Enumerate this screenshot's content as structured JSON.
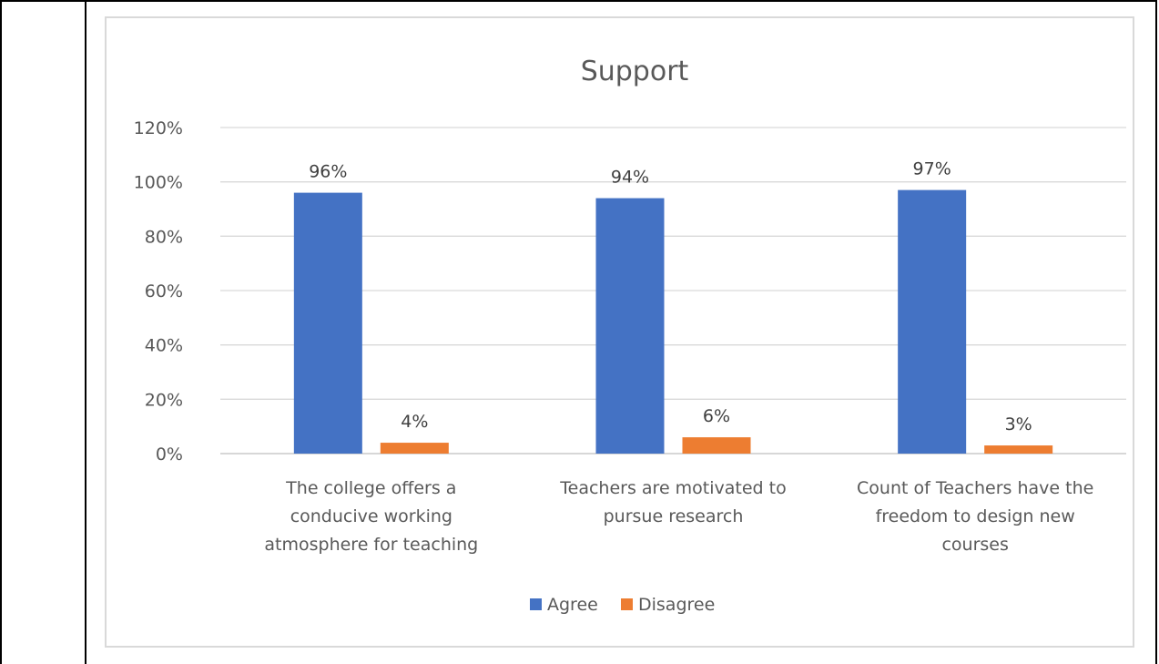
{
  "chart_data": {
    "type": "bar",
    "title": "Support",
    "categories": [
      [
        "The college offers a",
        "conducive working",
        "atmosphere for teaching"
      ],
      [
        "Teachers are motivated to",
        "pursue research"
      ],
      [
        "Count of Teachers have the",
        "freedom to design new",
        "courses"
      ]
    ],
    "series": [
      {
        "name": "Agree",
        "color": "#4472c4",
        "values": [
          0.96,
          0.94,
          0.97
        ],
        "labels": [
          "96%",
          "94%",
          "97%"
        ]
      },
      {
        "name": "Disagree",
        "color": "#ed7d31",
        "values": [
          0.04,
          0.06,
          0.03
        ],
        "labels": [
          "4%",
          "6%",
          "3%"
        ]
      }
    ],
    "ylim": [
      0,
      1.2
    ],
    "yticks": [
      "0%",
      "20%",
      "40%",
      "60%",
      "80%",
      "100%",
      "120%"
    ],
    "grid": true,
    "legend_position": "bottom"
  }
}
